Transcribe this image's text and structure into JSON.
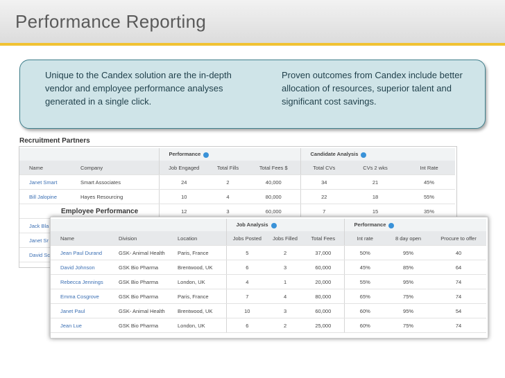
{
  "header": {
    "title": "Performance Reporting"
  },
  "callout": {
    "left": "Unique to the Candex solution are the in-depth vendor and employee performance analyses generated in a single click.",
    "right": "Proven outcomes from Candex include better allocation of resources, superior talent and significant cost savings."
  },
  "recruitment_partners": {
    "label": "Recruitment Partners",
    "groups": [
      "Performance",
      "Candidate Analysis"
    ],
    "columns": [
      "Name",
      "Company",
      "Job Engaged",
      "Total Fills",
      "Total Fees $",
      "Total CVs",
      "CVs 2 wks",
      "Int Rate"
    ],
    "rows": [
      [
        "Janet Smart",
        "Smart Associates",
        "24",
        "2",
        "40,000",
        "34",
        "21",
        "45%"
      ],
      [
        "Bill Jalopine",
        "Hayes Resourcing",
        "10",
        "4",
        "80,000",
        "22",
        "18",
        "55%"
      ],
      [
        null,
        null,
        "12",
        "3",
        "60,000",
        "7",
        "15",
        "35%"
      ],
      [
        "Jack Bla"
      ],
      [
        "Janet Sr"
      ],
      [
        "David Sc"
      ]
    ]
  },
  "employee_performance": {
    "label": "Employee Performance",
    "groups": [
      "Job Analysis",
      "Performance"
    ],
    "columns": [
      "Name",
      "Division",
      "Location",
      "Jobs Posted",
      "Jobs Filled",
      "Total Fees",
      "Int rate",
      "8 day open",
      "Procure to offer"
    ],
    "rows": [
      [
        "Jean Paul Durand",
        "GSK- Animal Health",
        "Paris, France",
        "5",
        "2",
        "37,000",
        "50%",
        "95%",
        "40"
      ],
      [
        "David Johnson",
        "GSK Bio Pharma",
        "Brentwood, UK",
        "6",
        "3",
        "60,000",
        "45%",
        "85%",
        "64"
      ],
      [
        "Rebecca Jennings",
        "GSK Bio Pharma",
        "London, UK",
        "4",
        "1",
        "20,000",
        "55%",
        "95%",
        "74"
      ],
      [
        "Emma Cosgrove",
        "GSK Bio Pharma",
        "Paris, France",
        "7",
        "4",
        "80,000",
        "65%",
        "75%",
        "74"
      ],
      [
        "Janet Paul",
        "GSK- Animal Health",
        "Brentwood, UK",
        "10",
        "3",
        "60,000",
        "60%",
        "95%",
        "54"
      ],
      [
        "Jean Lue",
        "GSK Bio Pharma",
        "London, UK",
        "6",
        "2",
        "25,000",
        "60%",
        "75%",
        "74"
      ]
    ]
  }
}
